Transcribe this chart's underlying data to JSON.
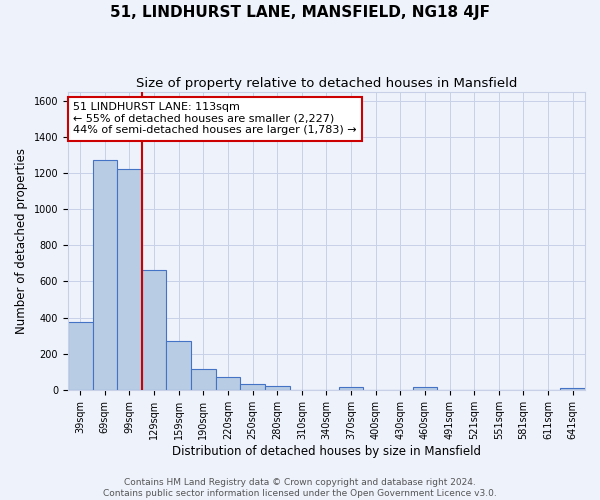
{
  "title": "51, LINDHURST LANE, MANSFIELD, NG18 4JF",
  "subtitle": "Size of property relative to detached houses in Mansfield",
  "xlabel": "Distribution of detached houses by size in Mansfield",
  "ylabel": "Number of detached properties",
  "footer_line1": "Contains HM Land Registry data © Crown copyright and database right 2024.",
  "footer_line2": "Contains public sector information licensed under the Open Government Licence v3.0.",
  "categories": [
    "39sqm",
    "69sqm",
    "99sqm",
    "129sqm",
    "159sqm",
    "190sqm",
    "220sqm",
    "250sqm",
    "280sqm",
    "310sqm",
    "340sqm",
    "370sqm",
    "400sqm",
    "430sqm",
    "460sqm",
    "491sqm",
    "521sqm",
    "551sqm",
    "581sqm",
    "611sqm",
    "641sqm"
  ],
  "values": [
    375,
    1270,
    1220,
    665,
    270,
    115,
    70,
    35,
    20,
    0,
    0,
    17,
    0,
    0,
    15,
    0,
    0,
    0,
    0,
    0,
    10
  ],
  "bar_color": "#b8cce4",
  "bar_edge_color": "#4472c4",
  "bar_linewidth": 0.8,
  "red_line_index": 2.5,
  "red_line_color": "#cc0000",
  "annotation_line1": "51 LINDHURST LANE: 113sqm",
  "annotation_line2": "← 55% of detached houses are smaller (2,227)",
  "annotation_line3": "44% of semi-detached houses are larger (1,783) →",
  "ylim": [
    0,
    1650
  ],
  "yticks": [
    0,
    200,
    400,
    600,
    800,
    1000,
    1200,
    1400,
    1600
  ],
  "background_color": "#eef2fb",
  "grid_color": "#c8d0e8",
  "title_fontsize": 11,
  "subtitle_fontsize": 9.5,
  "axis_label_fontsize": 8.5,
  "tick_fontsize": 7,
  "footer_fontsize": 6.5,
  "annotation_fontsize": 8
}
